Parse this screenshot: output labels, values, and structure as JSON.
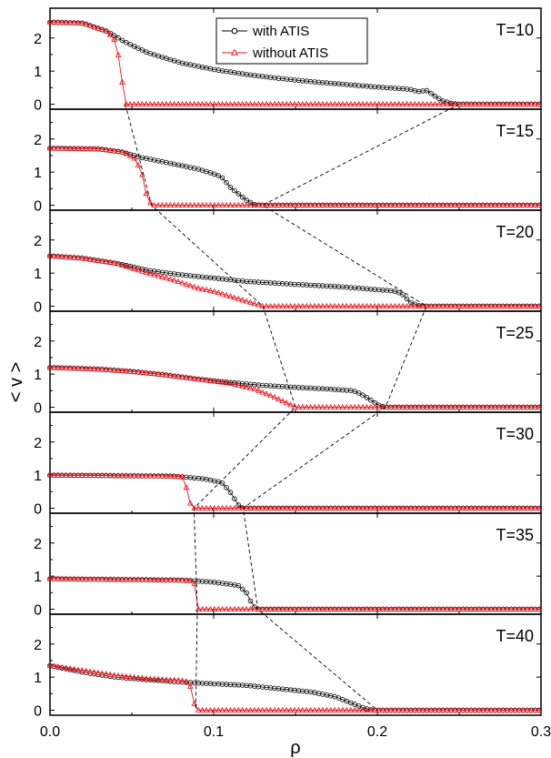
{
  "chart_data": {
    "type": "line",
    "xlabel": "ρ",
    "ylabel": "< v >",
    "xlim": [
      0,
      0.3
    ],
    "ylim": [
      -0.15,
      2.9
    ],
    "xticks": [
      0.0,
      0.1,
      0.2,
      0.3
    ],
    "xtick_labels": [
      "0.0",
      "0.1",
      "0.2",
      "0.3"
    ],
    "yticks": [
      0,
      1,
      2
    ],
    "ytick_labels": [
      "0",
      "1",
      "2"
    ],
    "legend": {
      "position": "top-center (first panel)",
      "entries": [
        {
          "label": "with ATIS",
          "color": "#000000",
          "marker": "circle"
        },
        {
          "label": "without ATIS",
          "color": "#e8141c",
          "marker": "triangle"
        }
      ]
    },
    "colors": {
      "with": "#000000",
      "without": "#e8141c"
    },
    "panels": [
      {
        "label": "T=10",
        "with_atis": [
          [
            0,
            2.48
          ],
          [
            0.02,
            2.45
          ],
          [
            0.035,
            2.2
          ],
          [
            0.045,
            1.9
          ],
          [
            0.06,
            1.55
          ],
          [
            0.08,
            1.25
          ],
          [
            0.1,
            1.05
          ],
          [
            0.12,
            0.9
          ],
          [
            0.14,
            0.78
          ],
          [
            0.16,
            0.68
          ],
          [
            0.18,
            0.6
          ],
          [
            0.2,
            0.52
          ],
          [
            0.22,
            0.45
          ],
          [
            0.225,
            0.38
          ],
          [
            0.23,
            0.42
          ],
          [
            0.235,
            0.25
          ],
          [
            0.24,
            0.1
          ],
          [
            0.245,
            0.03
          ],
          [
            0.25,
            0.0
          ],
          [
            0.3,
            0.0
          ]
        ],
        "without_atis": [
          [
            0,
            2.48
          ],
          [
            0.02,
            2.45
          ],
          [
            0.035,
            2.2
          ],
          [
            0.04,
            1.9
          ],
          [
            0.042,
            1.4
          ],
          [
            0.046,
            0.0
          ],
          [
            0.3,
            0.0
          ]
        ]
      },
      {
        "label": "T=15",
        "with_atis": [
          [
            0,
            1.72
          ],
          [
            0.03,
            1.7
          ],
          [
            0.045,
            1.6
          ],
          [
            0.055,
            1.45
          ],
          [
            0.07,
            1.3
          ],
          [
            0.09,
            1.1
          ],
          [
            0.1,
            0.95
          ],
          [
            0.105,
            0.85
          ],
          [
            0.11,
            0.55
          ],
          [
            0.115,
            0.35
          ],
          [
            0.12,
            0.15
          ],
          [
            0.125,
            0.02
          ],
          [
            0.13,
            0.0
          ],
          [
            0.3,
            0.0
          ]
        ],
        "without_atis": [
          [
            0,
            1.72
          ],
          [
            0.03,
            1.7
          ],
          [
            0.045,
            1.6
          ],
          [
            0.052,
            1.4
          ],
          [
            0.056,
            1.0
          ],
          [
            0.059,
            0.3
          ],
          [
            0.062,
            0.0
          ],
          [
            0.3,
            0.0
          ]
        ]
      },
      {
        "label": "T=20",
        "with_atis": [
          [
            0,
            1.52
          ],
          [
            0.02,
            1.45
          ],
          [
            0.04,
            1.3
          ],
          [
            0.05,
            1.2
          ],
          [
            0.06,
            1.08
          ],
          [
            0.08,
            0.95
          ],
          [
            0.1,
            0.85
          ],
          [
            0.12,
            0.75
          ],
          [
            0.15,
            0.66
          ],
          [
            0.18,
            0.58
          ],
          [
            0.2,
            0.5
          ],
          [
            0.21,
            0.46
          ],
          [
            0.215,
            0.38
          ],
          [
            0.22,
            0.12
          ],
          [
            0.225,
            0.02
          ],
          [
            0.23,
            0.0
          ],
          [
            0.3,
            0.0
          ]
        ],
        "without_atis": [
          [
            0,
            1.52
          ],
          [
            0.02,
            1.45
          ],
          [
            0.04,
            1.3
          ],
          [
            0.05,
            1.15
          ],
          [
            0.06,
            1.0
          ],
          [
            0.075,
            0.8
          ],
          [
            0.09,
            0.55
          ],
          [
            0.1,
            0.45
          ],
          [
            0.11,
            0.3
          ],
          [
            0.12,
            0.15
          ],
          [
            0.127,
            0.05
          ],
          [
            0.13,
            0.0
          ],
          [
            0.3,
            0.0
          ]
        ]
      },
      {
        "label": "T=25",
        "with_atis": [
          [
            0,
            1.2
          ],
          [
            0.03,
            1.15
          ],
          [
            0.05,
            1.08
          ],
          [
            0.07,
            0.98
          ],
          [
            0.09,
            0.85
          ],
          [
            0.11,
            0.75
          ],
          [
            0.13,
            0.66
          ],
          [
            0.15,
            0.6
          ],
          [
            0.17,
            0.55
          ],
          [
            0.185,
            0.5
          ],
          [
            0.19,
            0.4
          ],
          [
            0.195,
            0.25
          ],
          [
            0.2,
            0.08
          ],
          [
            0.205,
            0.0
          ],
          [
            0.3,
            0.0
          ]
        ],
        "without_atis": [
          [
            0,
            1.2
          ],
          [
            0.03,
            1.15
          ],
          [
            0.05,
            1.08
          ],
          [
            0.07,
            0.98
          ],
          [
            0.09,
            0.85
          ],
          [
            0.11,
            0.72
          ],
          [
            0.125,
            0.55
          ],
          [
            0.135,
            0.35
          ],
          [
            0.145,
            0.12
          ],
          [
            0.15,
            0.0
          ],
          [
            0.3,
            0.0
          ]
        ]
      },
      {
        "label": "T=30",
        "with_atis": [
          [
            0,
            1.0
          ],
          [
            0.05,
            0.98
          ],
          [
            0.075,
            0.97
          ],
          [
            0.085,
            0.93
          ],
          [
            0.095,
            0.88
          ],
          [
            0.105,
            0.78
          ],
          [
            0.11,
            0.5
          ],
          [
            0.115,
            0.1
          ],
          [
            0.118,
            0.0
          ],
          [
            0.3,
            0.0
          ]
        ],
        "without_atis": [
          [
            0,
            1.0
          ],
          [
            0.05,
            0.98
          ],
          [
            0.075,
            0.97
          ],
          [
            0.082,
            0.95
          ],
          [
            0.085,
            0.2
          ],
          [
            0.088,
            0.0
          ],
          [
            0.3,
            0.0
          ]
        ]
      },
      {
        "label": "T=35",
        "with_atis": [
          [
            0,
            0.92
          ],
          [
            0.04,
            0.9
          ],
          [
            0.08,
            0.88
          ],
          [
            0.1,
            0.82
          ],
          [
            0.115,
            0.72
          ],
          [
            0.12,
            0.5
          ],
          [
            0.124,
            0.1
          ],
          [
            0.127,
            0.0
          ],
          [
            0.3,
            0.0
          ]
        ],
        "without_atis": [
          [
            0,
            0.92
          ],
          [
            0.04,
            0.9
          ],
          [
            0.08,
            0.88
          ],
          [
            0.088,
            0.86
          ],
          [
            0.09,
            0.0
          ],
          [
            0.3,
            0.0
          ]
        ]
      },
      {
        "label": "T=40",
        "with_atis": [
          [
            0,
            1.35
          ],
          [
            0.02,
            1.15
          ],
          [
            0.04,
            1.0
          ],
          [
            0.06,
            0.92
          ],
          [
            0.08,
            0.85
          ],
          [
            0.1,
            0.8
          ],
          [
            0.12,
            0.75
          ],
          [
            0.14,
            0.65
          ],
          [
            0.16,
            0.55
          ],
          [
            0.175,
            0.4
          ],
          [
            0.185,
            0.2
          ],
          [
            0.19,
            0.1
          ],
          [
            0.195,
            0.02
          ],
          [
            0.2,
            0.0
          ],
          [
            0.3,
            0.0
          ]
        ],
        "without_atis": [
          [
            0,
            1.35
          ],
          [
            0.02,
            1.2
          ],
          [
            0.04,
            1.05
          ],
          [
            0.06,
            0.95
          ],
          [
            0.08,
            0.9
          ],
          [
            0.085,
            0.85
          ],
          [
            0.087,
            0.5
          ],
          [
            0.089,
            0.0
          ],
          [
            0.3,
            0.0
          ]
        ]
      }
    ],
    "guide_lines": [
      {
        "series": "without_atis",
        "points": [
          [
            0.046,
            0
          ],
          [
            0.062,
            0
          ],
          [
            0.13,
            0
          ],
          [
            0.15,
            0
          ],
          [
            0.088,
            0
          ],
          [
            0.09,
            0
          ],
          [
            0.089,
            0
          ]
        ]
      },
      {
        "series": "with_atis",
        "points": [
          [
            0.25,
            0
          ],
          [
            0.13,
            0
          ],
          [
            0.23,
            0
          ],
          [
            0.205,
            0
          ],
          [
            0.118,
            0
          ],
          [
            0.127,
            0
          ],
          [
            0.2,
            0
          ]
        ]
      }
    ]
  }
}
